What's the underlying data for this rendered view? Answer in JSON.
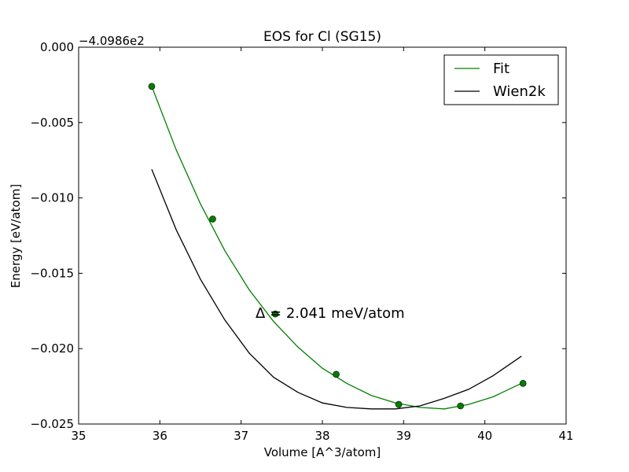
{
  "chart_data": {
    "type": "line",
    "title": "EOS for Cl (SG15)",
    "xlabel": "Volume [A^3/atom]",
    "ylabel": "Energy [eV/atom]",
    "y_offset_label": "−4.0986e2",
    "xlim": [
      35,
      41
    ],
    "ylim": [
      -0.025,
      0.0
    ],
    "x_ticks": [
      35,
      36,
      37,
      38,
      39,
      40,
      41
    ],
    "x_tick_labels": [
      "35",
      "36",
      "37",
      "38",
      "39",
      "40",
      "41"
    ],
    "y_ticks": [
      0.0,
      -0.005,
      -0.01,
      -0.015,
      -0.02,
      -0.025
    ],
    "y_tick_labels": [
      "0.000",
      "−0.005",
      "−0.010",
      "−0.015",
      "−0.020",
      "−0.025"
    ],
    "annotation": "Δ = 2.041 meV/atom",
    "legend_position": "top-right",
    "grid": false,
    "series": [
      {
        "name": "Fit",
        "color": "#008000",
        "x": [
          35.9,
          36.2,
          36.5,
          36.8,
          37.1,
          37.4,
          37.7,
          38.0,
          38.3,
          38.6,
          38.9,
          39.2,
          39.5,
          39.8,
          40.1,
          40.45
        ],
        "y": [
          -0.0026,
          -0.0068,
          -0.0104,
          -0.0135,
          -0.0161,
          -0.0182,
          -0.0199,
          -0.0213,
          -0.0223,
          -0.0231,
          -0.0236,
          -0.0239,
          -0.024,
          -0.0237,
          -0.0232,
          -0.0223
        ]
      },
      {
        "name": "Wien2k",
        "color": "#000000",
        "x": [
          35.9,
          36.2,
          36.5,
          36.8,
          37.1,
          37.4,
          37.7,
          38.0,
          38.3,
          38.6,
          38.9,
          39.2,
          39.5,
          39.8,
          40.1,
          40.45
        ],
        "y": [
          -0.0081,
          -0.0121,
          -0.0154,
          -0.0181,
          -0.0203,
          -0.0219,
          -0.0229,
          -0.0236,
          -0.0239,
          -0.024,
          -0.024,
          -0.0238,
          -0.0233,
          -0.0227,
          -0.0218,
          -0.0205
        ]
      }
    ],
    "points": {
      "series": "Fit",
      "color": "#008000",
      "x": [
        35.9,
        36.65,
        37.42,
        38.17,
        38.94,
        39.7,
        40.47
      ],
      "y": [
        -0.0026,
        -0.0114,
        -0.0177,
        -0.0217,
        -0.0237,
        -0.0238,
        -0.0223
      ]
    }
  }
}
